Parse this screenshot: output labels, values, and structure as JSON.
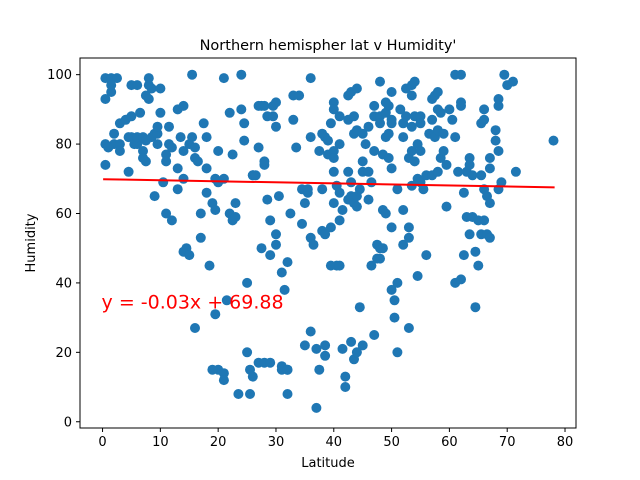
{
  "chart_data": {
    "type": "scatter",
    "title": "Northern hemispher lat v Humidity'",
    "xlabel": "Latitude",
    "ylabel": "Humidity",
    "xlim": [
      -3.9,
      81.9
    ],
    "ylim": [
      -1.8,
      104.8
    ],
    "xticks": [
      0,
      10,
      20,
      30,
      40,
      50,
      60,
      70,
      80
    ],
    "yticks": [
      0,
      20,
      40,
      60,
      80,
      100
    ],
    "grid": false,
    "marker_color": "#1f77b4",
    "regression": {
      "slope": -0.03,
      "intercept": 69.88,
      "x_range": [
        0.1,
        78.2
      ],
      "color": "#ff0000",
      "label": "y = -0.03x + 69.88",
      "label_position": [
        0,
        35
      ]
    },
    "points": [
      [
        0.5,
        99
      ],
      [
        1.5,
        99
      ],
      [
        2.5,
        99
      ],
      [
        0.5,
        93
      ],
      [
        1.5,
        95
      ],
      [
        1.5,
        97
      ],
      [
        0.5,
        80
      ],
      [
        0.5,
        74
      ],
      [
        2,
        83
      ],
      [
        2,
        80
      ],
      [
        3,
        80
      ],
      [
        3,
        78
      ],
      [
        1,
        79
      ],
      [
        3,
        86
      ],
      [
        4,
        87
      ],
      [
        4.5,
        72
      ],
      [
        5,
        88
      ],
      [
        4.5,
        82
      ],
      [
        5,
        82
      ],
      [
        5.5,
        80
      ],
      [
        6,
        80
      ],
      [
        6,
        82
      ],
      [
        5,
        97
      ],
      [
        6,
        97
      ],
      [
        6.5,
        89
      ],
      [
        7,
        82
      ],
      [
        7.5,
        81
      ],
      [
        7,
        78
      ],
      [
        7.5,
        75
      ],
      [
        7,
        76
      ],
      [
        7.5,
        94
      ],
      [
        8,
        97
      ],
      [
        8,
        93
      ],
      [
        8,
        99
      ],
      [
        8.5,
        96
      ],
      [
        9,
        83
      ],
      [
        8.5,
        82
      ],
      [
        9.5,
        80
      ],
      [
        9.5,
        83
      ],
      [
        9.5,
        85
      ],
      [
        10,
        89
      ],
      [
        10,
        96
      ],
      [
        10.5,
        69
      ],
      [
        9,
        65
      ],
      [
        11,
        77
      ],
      [
        11,
        75
      ],
      [
        11.5,
        80
      ],
      [
        11.5,
        85
      ],
      [
        12,
        79
      ],
      [
        11,
        60
      ],
      [
        12,
        58
      ],
      [
        13,
        67
      ],
      [
        13,
        73
      ],
      [
        13,
        90
      ],
      [
        13.5,
        82
      ],
      [
        14,
        70
      ],
      [
        14,
        78
      ],
      [
        14,
        91
      ],
      [
        14.5,
        50
      ],
      [
        14,
        49
      ],
      [
        15,
        48
      ],
      [
        15.5,
        100
      ],
      [
        15,
        80
      ],
      [
        15.5,
        82
      ],
      [
        16,
        79
      ],
      [
        16,
        76
      ],
      [
        16.5,
        75
      ],
      [
        16,
        27
      ],
      [
        17,
        60
      ],
      [
        17,
        53
      ],
      [
        17.5,
        86
      ],
      [
        18,
        82
      ],
      [
        18,
        73
      ],
      [
        18,
        66
      ],
      [
        18.5,
        45
      ],
      [
        19,
        63
      ],
      [
        19.5,
        61
      ],
      [
        19.5,
        70
      ],
      [
        20,
        69
      ],
      [
        21,
        70
      ],
      [
        20,
        78
      ],
      [
        20,
        15
      ],
      [
        19,
        15
      ],
      [
        19.5,
        31
      ],
      [
        21,
        14
      ],
      [
        21,
        12
      ],
      [
        21.5,
        35
      ],
      [
        21,
        99
      ],
      [
        22,
        89
      ],
      [
        22.5,
        77
      ],
      [
        22,
        60
      ],
      [
        22.5,
        58
      ],
      [
        23,
        59
      ],
      [
        23,
        63
      ],
      [
        23.5,
        8
      ],
      [
        24,
        100
      ],
      [
        24,
        90
      ],
      [
        24.5,
        81
      ],
      [
        24.5,
        86
      ],
      [
        25,
        40
      ],
      [
        25,
        20
      ],
      [
        25.5,
        15
      ],
      [
        25.5,
        8
      ],
      [
        26,
        13
      ],
      [
        26,
        71
      ],
      [
        26,
        71
      ],
      [
        26.5,
        71
      ],
      [
        27,
        91
      ],
      [
        27,
        79
      ],
      [
        27.5,
        91
      ],
      [
        28,
        91
      ],
      [
        28.5,
        88
      ],
      [
        28,
        74
      ],
      [
        28,
        75
      ],
      [
        28.5,
        64
      ],
      [
        27.5,
        50
      ],
      [
        27,
        17
      ],
      [
        28,
        17
      ],
      [
        29,
        17
      ],
      [
        29,
        58
      ],
      [
        29,
        48
      ],
      [
        29.5,
        91
      ],
      [
        29.5,
        88
      ],
      [
        30,
        85
      ],
      [
        30,
        92
      ],
      [
        30.5,
        65
      ],
      [
        30,
        51
      ],
      [
        30,
        54
      ],
      [
        31,
        16
      ],
      [
        31,
        15
      ],
      [
        31,
        43
      ],
      [
        31.5,
        38
      ],
      [
        32,
        8
      ],
      [
        32,
        15
      ],
      [
        32,
        46
      ],
      [
        32,
        15
      ],
      [
        32.5,
        60
      ],
      [
        33,
        87
      ],
      [
        33,
        94
      ],
      [
        33.5,
        79
      ],
      [
        34,
        94
      ],
      [
        34.5,
        67
      ],
      [
        34.5,
        57
      ],
      [
        35,
        22
      ],
      [
        35,
        63
      ],
      [
        35.5,
        67
      ],
      [
        35.5,
        66
      ],
      [
        36,
        99
      ],
      [
        36,
        82
      ],
      [
        36,
        53
      ],
      [
        36.5,
        51
      ],
      [
        36,
        26
      ],
      [
        37,
        21
      ],
      [
        37,
        4
      ],
      [
        37.5,
        15
      ],
      [
        37.5,
        78
      ],
      [
        38,
        83
      ],
      [
        38,
        67
      ],
      [
        38.5,
        82
      ],
      [
        38,
        55
      ],
      [
        38.5,
        54
      ],
      [
        38.5,
        19
      ],
      [
        38.5,
        22
      ],
      [
        39,
        81
      ],
      [
        39,
        77
      ],
      [
        39.5,
        86
      ],
      [
        39.5,
        56
      ],
      [
        39.5,
        45
      ],
      [
        40,
        92
      ],
      [
        40,
        90
      ],
      [
        40,
        72
      ],
      [
        40,
        63
      ],
      [
        40.5,
        45
      ],
      [
        40.5,
        68
      ],
      [
        40,
        78
      ],
      [
        40,
        76
      ],
      [
        41,
        88
      ],
      [
        41,
        80
      ],
      [
        41,
        66
      ],
      [
        41.5,
        61
      ],
      [
        41,
        58
      ],
      [
        41,
        45
      ],
      [
        41.5,
        21
      ],
      [
        42,
        13
      ],
      [
        42,
        10
      ],
      [
        42.5,
        94
      ],
      [
        42.5,
        87
      ],
      [
        42.5,
        72
      ],
      [
        42.5,
        64
      ],
      [
        43,
        65
      ],
      [
        43,
        69
      ],
      [
        43,
        23
      ],
      [
        43,
        95
      ],
      [
        43.5,
        83
      ],
      [
        43.5,
        88
      ],
      [
        43.5,
        63
      ],
      [
        44,
        62
      ],
      [
        43.5,
        18
      ],
      [
        44,
        96
      ],
      [
        44,
        84
      ],
      [
        44,
        65
      ],
      [
        44.5,
        67
      ],
      [
        44,
        20
      ],
      [
        44.5,
        33
      ],
      [
        45,
        83
      ],
      [
        45,
        75
      ],
      [
        45,
        72
      ],
      [
        45,
        22
      ],
      [
        45.5,
        80
      ],
      [
        46,
        85
      ],
      [
        46,
        72
      ],
      [
        46,
        64
      ],
      [
        46.5,
        45
      ],
      [
        46.5,
        69
      ],
      [
        47,
        88
      ],
      [
        47,
        91
      ],
      [
        47,
        25
      ],
      [
        47,
        78
      ],
      [
        47.5,
        51
      ],
      [
        47.5,
        47
      ],
      [
        48,
        98
      ],
      [
        48,
        88
      ],
      [
        48,
        86
      ],
      [
        48,
        50
      ],
      [
        48,
        47
      ],
      [
        48.5,
        77
      ],
      [
        48.5,
        61
      ],
      [
        48.5,
        50
      ],
      [
        49,
        92
      ],
      [
        49,
        89
      ],
      [
        49,
        82
      ],
      [
        49,
        60
      ],
      [
        49.5,
        91
      ],
      [
        49.5,
        83
      ],
      [
        49.5,
        76
      ],
      [
        50,
        95
      ],
      [
        50,
        87
      ],
      [
        50,
        86
      ],
      [
        50,
        73
      ],
      [
        50,
        56
      ],
      [
        50,
        38
      ],
      [
        50.5,
        30
      ],
      [
        50.5,
        35
      ],
      [
        51,
        67
      ],
      [
        51,
        40
      ],
      [
        51,
        20
      ],
      [
        51.5,
        90
      ],
      [
        52,
        86
      ],
      [
        52,
        82
      ],
      [
        52,
        61
      ],
      [
        52,
        51
      ],
      [
        52.5,
        96
      ],
      [
        52.5,
        88
      ],
      [
        53,
        76
      ],
      [
        53,
        56
      ],
      [
        53,
        53
      ],
      [
        53,
        27
      ],
      [
        53.5,
        97
      ],
      [
        53.5,
        94
      ],
      [
        53.5,
        85
      ],
      [
        53.5,
        78
      ],
      [
        53.5,
        68
      ],
      [
        54,
        98
      ],
      [
        54,
        88
      ],
      [
        54,
        75
      ],
      [
        54.5,
        80
      ],
      [
        54.5,
        70
      ],
      [
        54.5,
        42
      ],
      [
        55,
        88
      ],
      [
        55,
        86
      ],
      [
        55,
        78
      ],
      [
        55,
        69
      ],
      [
        55.5,
        67
      ],
      [
        56,
        71
      ],
      [
        56,
        48
      ],
      [
        56.5,
        83
      ],
      [
        57,
        93
      ],
      [
        57,
        87
      ],
      [
        57,
        71
      ],
      [
        57.5,
        94
      ],
      [
        57.5,
        82
      ],
      [
        58,
        95
      ],
      [
        58,
        90
      ],
      [
        58,
        84
      ],
      [
        58,
        72
      ],
      [
        58.5,
        89
      ],
      [
        58.5,
        76
      ],
      [
        59,
        83
      ],
      [
        59,
        78
      ],
      [
        59.5,
        74
      ],
      [
        59.5,
        62
      ],
      [
        60,
        90
      ],
      [
        60.5,
        87
      ],
      [
        61,
        82
      ],
      [
        61,
        40
      ],
      [
        61,
        100
      ],
      [
        61.5,
        72
      ],
      [
        62,
        100
      ],
      [
        62,
        92
      ],
      [
        62,
        91
      ],
      [
        62,
        41
      ],
      [
        62.5,
        66
      ],
      [
        62.5,
        48
      ],
      [
        63,
        59
      ],
      [
        63,
        72
      ],
      [
        63.5,
        76
      ],
      [
        63.5,
        74
      ],
      [
        63.5,
        54
      ],
      [
        64,
        59
      ],
      [
        64,
        71
      ],
      [
        64.5,
        33
      ],
      [
        64.5,
        49
      ],
      [
        65,
        58
      ],
      [
        65,
        45
      ],
      [
        65.5,
        54
      ],
      [
        65.5,
        86
      ],
      [
        65.5,
        71
      ],
      [
        66,
        90
      ],
      [
        66,
        87
      ],
      [
        66,
        67
      ],
      [
        66,
        58
      ],
      [
        66.5,
        65
      ],
      [
        66.5,
        54
      ],
      [
        67,
        63
      ],
      [
        67,
        53
      ],
      [
        67,
        76
      ],
      [
        67,
        73
      ],
      [
        68,
        84
      ],
      [
        68,
        81
      ],
      [
        68.5,
        91
      ],
      [
        68.5,
        93
      ],
      [
        68.5,
        78
      ],
      [
        68.5,
        67
      ],
      [
        69,
        69
      ],
      [
        69.5,
        100
      ],
      [
        70,
        97
      ],
      [
        71,
        98
      ],
      [
        71.5,
        72
      ],
      [
        78,
        81
      ]
    ]
  }
}
